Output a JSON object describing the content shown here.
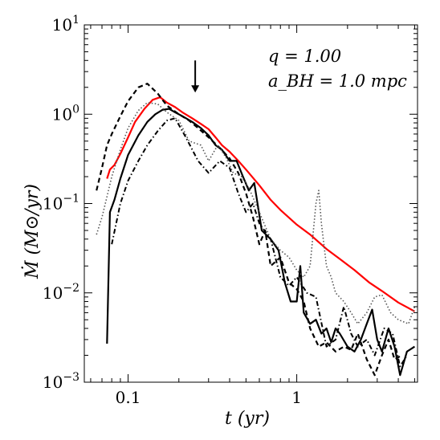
{
  "chart_data": {
    "type": "line",
    "xscale": "log",
    "yscale": "log",
    "xlim": [
      0.055,
      5.2
    ],
    "ylim": [
      0.001,
      10
    ],
    "xlabel": "t   (yr)",
    "ylabel": "Ṁ   (M⊙/yr)",
    "annotations": [
      "q = 1.00",
      "a_BH = 1.0 mpc"
    ],
    "arrow": {
      "x": 0.25,
      "y_from": 4.0,
      "y_to": 1.75,
      "direction": "down"
    },
    "x_ticks": [
      {
        "value": 0.1,
        "label": "0.1"
      },
      {
        "value": 1,
        "label": "1"
      }
    ],
    "y_ticks": [
      {
        "value": 0.001,
        "base": "10",
        "exp": "−3"
      },
      {
        "value": 0.01,
        "base": "10",
        "exp": "−2"
      },
      {
        "value": 0.1,
        "base": "10",
        "exp": "−1"
      },
      {
        "value": 1,
        "base": "10",
        "exp": "0"
      },
      {
        "value": 10,
        "base": "10",
        "exp": "1"
      }
    ],
    "series": [
      {
        "style": "solid",
        "color": "#ff0000",
        "x": [
          0.075,
          0.078,
          0.083,
          0.09,
          0.1,
          0.11,
          0.125,
          0.14,
          0.155,
          0.17,
          0.19,
          0.21,
          0.24,
          0.27,
          0.3,
          0.33,
          0.36,
          0.4,
          0.45,
          0.5,
          0.6,
          0.7,
          0.8,
          1.0,
          1.2,
          1.5,
          1.8,
          2.2,
          2.7,
          3.2,
          4.0,
          5.0
        ],
        "y": [
          0.19,
          0.24,
          0.27,
          0.36,
          0.55,
          0.82,
          1.15,
          1.45,
          1.55,
          1.35,
          1.2,
          1.05,
          0.9,
          0.78,
          0.68,
          0.55,
          0.45,
          0.38,
          0.3,
          0.24,
          0.16,
          0.11,
          0.085,
          0.058,
          0.045,
          0.031,
          0.024,
          0.018,
          0.013,
          0.0105,
          0.0078,
          0.0062
        ]
      },
      {
        "style": "solid",
        "color": "#000000",
        "x": [
          0.075,
          0.078,
          0.083,
          0.09,
          0.1,
          0.115,
          0.13,
          0.145,
          0.16,
          0.175,
          0.19,
          0.21,
          0.24,
          0.27,
          0.3,
          0.33,
          0.36,
          0.4,
          0.44,
          0.48,
          0.52,
          0.56,
          0.62,
          0.7,
          0.78,
          0.85,
          0.92,
          1.0,
          1.05,
          1.1,
          1.2,
          1.3,
          1.4,
          1.5,
          1.6,
          1.7,
          1.8,
          2.0,
          2.2,
          2.4,
          2.6,
          2.8,
          3.0,
          3.2,
          3.5,
          3.8,
          4.1,
          4.5,
          5.0
        ],
        "y": [
          0.0027,
          0.08,
          0.11,
          0.19,
          0.35,
          0.58,
          0.82,
          1.0,
          1.12,
          1.15,
          1.05,
          0.95,
          0.82,
          0.7,
          0.58,
          0.45,
          0.4,
          0.3,
          0.3,
          0.2,
          0.14,
          0.17,
          0.05,
          0.04,
          0.03,
          0.013,
          0.008,
          0.008,
          0.02,
          0.006,
          0.0045,
          0.005,
          0.0035,
          0.004,
          0.0028,
          0.004,
          0.0035,
          0.0025,
          0.0022,
          0.003,
          0.0045,
          0.0065,
          0.003,
          0.0022,
          0.004,
          0.0025,
          0.0012,
          0.0022,
          0.0025
        ]
      },
      {
        "style": "dashed",
        "color": "#000000",
        "x": [
          0.065,
          0.07,
          0.075,
          0.08,
          0.09,
          0.1,
          0.115,
          0.13,
          0.15,
          0.17,
          0.2,
          0.23,
          0.26,
          0.3,
          0.35,
          0.4,
          0.45,
          0.5,
          0.55,
          0.6,
          0.65,
          0.7,
          0.8,
          0.9,
          1.0,
          1.1,
          1.2,
          1.35,
          1.5,
          1.7,
          1.9,
          2.1,
          2.3,
          2.6,
          2.9,
          3.2,
          3.5,
          3.8,
          4.2
        ],
        "y": [
          0.14,
          0.25,
          0.45,
          0.6,
          0.95,
          1.4,
          2.0,
          2.2,
          1.7,
          1.25,
          1.0,
          0.85,
          0.7,
          0.55,
          0.42,
          0.32,
          0.22,
          0.13,
          0.07,
          0.035,
          0.05,
          0.02,
          0.025,
          0.013,
          0.011,
          0.008,
          0.004,
          0.0025,
          0.0028,
          0.0022,
          0.0025,
          0.0023,
          0.0035,
          0.0018,
          0.0012,
          0.002,
          0.003,
          0.0018,
          0.002
        ]
      },
      {
        "style": "dotted",
        "color": "#555555",
        "x": [
          0.065,
          0.07,
          0.075,
          0.08,
          0.09,
          0.1,
          0.115,
          0.13,
          0.15,
          0.17,
          0.2,
          0.23,
          0.27,
          0.3,
          0.34,
          0.38,
          0.42,
          0.47,
          0.52,
          0.6,
          0.7,
          0.8,
          0.9,
          1.0,
          1.1,
          1.2,
          1.3,
          1.35,
          1.4,
          1.5,
          1.6,
          1.7,
          1.9,
          2.1,
          2.3,
          2.6,
          2.9,
          3.2,
          3.6,
          4.0,
          4.6,
          5.0
        ],
        "y": [
          0.045,
          0.07,
          0.12,
          0.2,
          0.4,
          0.7,
          1.1,
          1.35,
          1.3,
          1.05,
          0.85,
          0.5,
          0.45,
          0.3,
          0.45,
          0.33,
          0.22,
          0.2,
          0.15,
          0.08,
          0.04,
          0.03,
          0.025,
          0.018,
          0.015,
          0.02,
          0.1,
          0.14,
          0.06,
          0.02,
          0.015,
          0.01,
          0.008,
          0.006,
          0.0045,
          0.006,
          0.009,
          0.0095,
          0.006,
          0.005,
          0.0045,
          0.007
        ]
      },
      {
        "style": "dashdot",
        "color": "#000000",
        "x": [
          0.08,
          0.085,
          0.09,
          0.1,
          0.115,
          0.13,
          0.15,
          0.17,
          0.19,
          0.22,
          0.26,
          0.3,
          0.35,
          0.4,
          0.45,
          0.5,
          0.55,
          0.6,
          0.7,
          0.8,
          0.9,
          1.0,
          1.15,
          1.3,
          1.5,
          1.7,
          1.9,
          2.1,
          2.3,
          2.6,
          2.9,
          3.3,
          3.7,
          4.1,
          4.5
        ],
        "y": [
          0.035,
          0.06,
          0.1,
          0.18,
          0.3,
          0.45,
          0.65,
          0.85,
          0.9,
          0.55,
          0.3,
          0.22,
          0.3,
          0.25,
          0.13,
          0.08,
          0.1,
          0.06,
          0.04,
          0.015,
          0.012,
          0.015,
          0.01,
          0.009,
          0.0025,
          0.003,
          0.007,
          0.0035,
          0.0025,
          0.003,
          0.002,
          0.004,
          0.0035,
          0.0015,
          0.002
        ]
      }
    ]
  }
}
